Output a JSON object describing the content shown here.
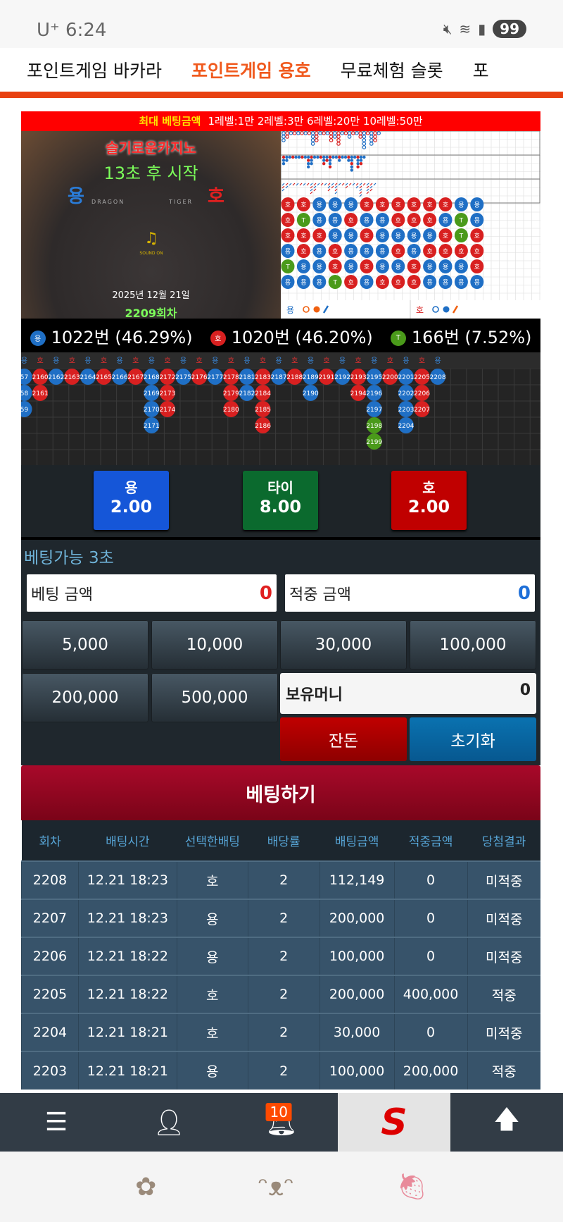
{
  "status_bar": {
    "carrier": "U⁺",
    "time": "6:24",
    "battery": "99"
  },
  "nav": {
    "tabs": [
      {
        "label": "포인트게임 바카라",
        "active": false
      },
      {
        "label": "포인트게임 용호",
        "active": true
      },
      {
        "label": "무료체험 슬롯",
        "active": false
      },
      {
        "label": "포",
        "active": false
      }
    ]
  },
  "max_bet": {
    "title": "최대 베팅금액",
    "levels": "1레벨:1만 2레벨:3만 6레벨:20만 10레벨:50만"
  },
  "video": {
    "brand": "슬기로운카지노",
    "countdown": "13초 후 시작",
    "dragon": "용",
    "tiger": "호",
    "dragon_label": "DRAGON",
    "tiger_label": "TIGER",
    "sound": "SOUND ON",
    "date": "2025년 12월 21일",
    "round": "2209회차"
  },
  "roadmap": {
    "bead_plate": [
      [
        "호",
        "호",
        "용",
        "용",
        "용",
        "호",
        "호",
        "호",
        "호",
        "호",
        "호",
        "용",
        "용"
      ],
      [
        "호",
        "T",
        "용",
        "용",
        "호",
        "용",
        "용",
        "호",
        "호",
        "호",
        "용",
        "T",
        "용"
      ],
      [
        "호",
        "호",
        "호",
        "용",
        "용",
        "호",
        "용",
        "용",
        "용",
        "용",
        "호",
        "T",
        "호"
      ],
      [
        "용",
        "호",
        "용",
        "호",
        "용",
        "용",
        "용",
        "호",
        "용",
        "호",
        "호",
        "호",
        "호"
      ],
      [
        "T",
        "용",
        "용",
        "호",
        "용",
        "호",
        "용",
        "용",
        "호",
        "용",
        "용",
        "용",
        "호"
      ],
      [
        "용",
        "용",
        "용",
        "T",
        "호",
        "용",
        "호",
        "호",
        "호",
        "용",
        "용",
        "용",
        "용"
      ]
    ],
    "legend": {
      "dragon": "용",
      "tiger": "호"
    }
  },
  "stats": {
    "dragon": {
      "icon": "용",
      "text": "1022번 (46.29%)"
    },
    "tiger": {
      "icon": "호",
      "text": "1020번 (46.20%)"
    },
    "tie": {
      "icon": "T",
      "text": "166번 (7.52%)"
    }
  },
  "bead_road": {
    "columns": [
      {
        "label": "용",
        "side": "dragon",
        "items": [
          [
            "57",
            "b"
          ],
          [
            "58",
            "b"
          ],
          [
            "59",
            "b"
          ]
        ]
      },
      {
        "label": "호",
        "side": "tiger",
        "items": [
          [
            "2160",
            "r"
          ],
          [
            "2161",
            "r"
          ]
        ]
      },
      {
        "label": "용",
        "side": "dragon",
        "items": [
          [
            "2162",
            "b"
          ]
        ]
      },
      {
        "label": "호",
        "side": "tiger",
        "items": [
          [
            "2163",
            "r"
          ]
        ]
      },
      {
        "label": "용",
        "side": "dragon",
        "items": [
          [
            "2164",
            "b"
          ]
        ]
      },
      {
        "label": "호",
        "side": "tiger",
        "items": [
          [
            "2165",
            "r"
          ]
        ]
      },
      {
        "label": "용",
        "side": "dragon",
        "items": [
          [
            "2166",
            "b"
          ]
        ]
      },
      {
        "label": "호",
        "side": "tiger",
        "items": [
          [
            "2167",
            "r"
          ]
        ]
      },
      {
        "label": "용",
        "side": "dragon",
        "items": [
          [
            "2168",
            "b"
          ],
          [
            "2169",
            "b"
          ],
          [
            "2170",
            "b"
          ],
          [
            "2171",
            "b"
          ]
        ]
      },
      {
        "label": "호",
        "side": "tiger",
        "items": [
          [
            "2172",
            "r"
          ],
          [
            "2173",
            "r"
          ],
          [
            "2174",
            "r"
          ]
        ]
      },
      {
        "label": "용",
        "side": "dragon",
        "items": [
          [
            "2175",
            "b"
          ]
        ]
      },
      {
        "label": "호",
        "side": "tiger",
        "items": [
          [
            "2176",
            "r"
          ]
        ]
      },
      {
        "label": "용",
        "side": "dragon",
        "items": [
          [
            "2177",
            "b"
          ]
        ]
      },
      {
        "label": "호",
        "side": "tiger",
        "items": [
          [
            "2178",
            "r"
          ],
          [
            "2179",
            "r"
          ],
          [
            "2180",
            "r"
          ]
        ]
      },
      {
        "label": "용",
        "side": "dragon",
        "items": [
          [
            "2181",
            "b"
          ],
          [
            "2182",
            "b"
          ]
        ]
      },
      {
        "label": "호",
        "side": "tiger",
        "items": [
          [
            "2183",
            "r"
          ],
          [
            "2184",
            "r"
          ],
          [
            "2185",
            "r"
          ],
          [
            "2186",
            "r"
          ]
        ]
      },
      {
        "label": "용",
        "side": "dragon",
        "items": [
          [
            "2187",
            "b"
          ]
        ]
      },
      {
        "label": "호",
        "side": "tiger",
        "items": [
          [
            "2188",
            "r"
          ]
        ]
      },
      {
        "label": "용",
        "side": "dragon",
        "items": [
          [
            "2189",
            "b"
          ],
          [
            "2190",
            "b"
          ]
        ]
      },
      {
        "label": "호",
        "side": "tiger",
        "items": [
          [
            "2191",
            "r"
          ]
        ]
      },
      {
        "label": "용",
        "side": "dragon",
        "items": [
          [
            "2192",
            "b"
          ]
        ]
      },
      {
        "label": "호",
        "side": "tiger",
        "items": [
          [
            "2193",
            "r"
          ],
          [
            "2194",
            "r"
          ]
        ]
      },
      {
        "label": "용",
        "side": "dragon",
        "items": [
          [
            "2195",
            "b"
          ],
          [
            "2196",
            "b"
          ],
          [
            "2197",
            "b"
          ],
          [
            "2198",
            "g"
          ],
          [
            "2199",
            "g"
          ]
        ]
      },
      {
        "label": "호",
        "side": "tiger",
        "items": [
          [
            "2200",
            "r"
          ]
        ]
      },
      {
        "label": "용",
        "side": "dragon",
        "items": [
          [
            "2201",
            "b"
          ],
          [
            "2202",
            "b"
          ],
          [
            "2203",
            "b"
          ],
          [
            "2204",
            "b"
          ]
        ]
      },
      {
        "label": "호",
        "side": "tiger",
        "items": [
          [
            "2205",
            "r"
          ],
          [
            "2206",
            "r"
          ],
          [
            "2207",
            "r"
          ]
        ]
      },
      {
        "label": "용",
        "side": "dragon",
        "items": [
          [
            "2208",
            "b"
          ]
        ]
      }
    ]
  },
  "bet_options": [
    {
      "label": "용",
      "odds": "2.00",
      "color": "#1556d8"
    },
    {
      "label": "타이",
      "odds": "8.00",
      "color": "#0b6a2e"
    },
    {
      "label": "호",
      "odds": "2.00",
      "color": "#c00000"
    }
  ],
  "betting": {
    "available": "베팅가능 3초",
    "bet_amount_label": "베팅 금액",
    "bet_amount": "0",
    "win_amount_label": "적중 금액",
    "win_amount": "0",
    "chips": [
      "5,000",
      "10,000",
      "30,000",
      "100,000",
      "200,000",
      "500,000"
    ],
    "holding_label": "보유머니",
    "holding": "0",
    "change_label": "잔돈",
    "reset_label": "초기화",
    "submit_label": "베팅하기"
  },
  "history": {
    "headers": [
      "회차",
      "배팅시간",
      "선택한배팅",
      "배당률",
      "배팅금액",
      "적중금액",
      "당첨결과"
    ],
    "rows": [
      [
        "2208",
        "12.21 18:23",
        "호",
        "2",
        "112,149",
        "0",
        "미적중"
      ],
      [
        "2207",
        "12.21 18:23",
        "용",
        "2",
        "200,000",
        "0",
        "미적중"
      ],
      [
        "2206",
        "12.21 18:22",
        "용",
        "2",
        "100,000",
        "0",
        "미적중"
      ],
      [
        "2205",
        "12.21 18:22",
        "호",
        "2",
        "200,000",
        "400,000",
        "적중"
      ],
      [
        "2204",
        "12.21 18:21",
        "호",
        "2",
        "30,000",
        "0",
        "미적중"
      ],
      [
        "2203",
        "12.21 18:21",
        "용",
        "2",
        "100,000",
        "200,000",
        "적중"
      ]
    ]
  },
  "bottom_nav": {
    "notifications": "10",
    "items": [
      "menu-icon",
      "user-icon",
      "bell-icon",
      "logo",
      "arrow-up-icon"
    ]
  },
  "colors": {
    "dragon": "#1f6fc5",
    "tiger": "#d82020",
    "tie": "#4a9a1a",
    "accent": "#f05a1e"
  }
}
